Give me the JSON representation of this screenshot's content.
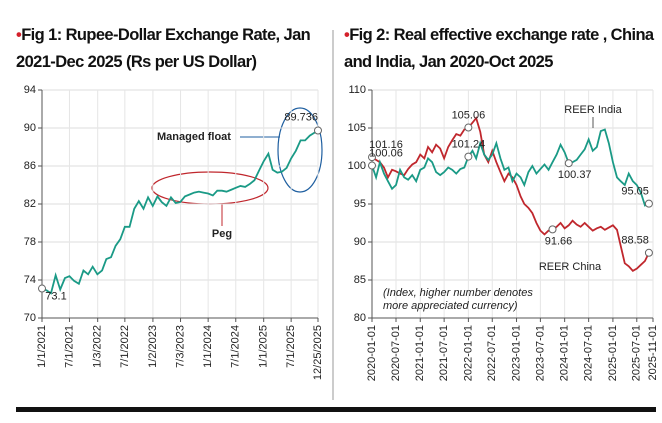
{
  "chart_data": [
    {
      "type": "line",
      "title": "Fig 1: Rupee-Dollar Exchange Rate, Jan 2021-Dec 2025 (Rs per US Dollar)",
      "x": [
        "2021-01-01",
        "2021-02-01",
        "2021-03-01",
        "2021-04-01",
        "2021-05-01",
        "2021-06-01",
        "2021-07-01",
        "2021-08-01",
        "2021-09-01",
        "2021-10-01",
        "2021-11-01",
        "2021-12-01",
        "2022-01-01",
        "2022-02-01",
        "2022-03-01",
        "2022-04-01",
        "2022-05-01",
        "2022-06-01",
        "2022-07-01",
        "2022-08-01",
        "2022-09-01",
        "2022-10-01",
        "2022-11-01",
        "2022-12-01",
        "2023-01-01",
        "2023-02-01",
        "2023-03-01",
        "2023-04-01",
        "2023-05-01",
        "2023-06-01",
        "2023-07-01",
        "2023-08-01",
        "2023-09-01",
        "2023-10-01",
        "2023-11-01",
        "2023-12-01",
        "2024-01-01",
        "2024-02-01",
        "2024-03-01",
        "2024-04-01",
        "2024-05-01",
        "2024-06-01",
        "2024-07-01",
        "2024-08-01",
        "2024-09-01",
        "2024-10-01",
        "2024-11-01",
        "2024-12-01",
        "2025-01-01",
        "2025-02-01",
        "2025-03-01",
        "2025-04-01",
        "2025-05-01",
        "2025-06-01",
        "2025-07-01",
        "2025-08-01",
        "2025-09-01",
        "2025-10-01",
        "2025-11-01",
        "2025-12-25"
      ],
      "series": [
        {
          "color": "#1a9a86",
          "labeled_points": [
            0,
            59
          ],
          "values": [
            73.1,
            72.9,
            72.6,
            74.5,
            73.0,
            74.2,
            74.4,
            73.9,
            73.6,
            75.0,
            74.6,
            75.4,
            74.6,
            75.0,
            76.2,
            76.4,
            77.6,
            78.3,
            79.6,
            79.6,
            81.5,
            82.3,
            81.5,
            82.7,
            81.8,
            82.8,
            82.2,
            81.8,
            82.7,
            82.1,
            82.2,
            82.8,
            83.0,
            83.2,
            83.3,
            83.2,
            83.1,
            82.9,
            83.4,
            83.4,
            83.3,
            83.5,
            83.7,
            83.9,
            83.8,
            84.1,
            84.5,
            85.5,
            86.5,
            87.3,
            85.6,
            85.3,
            85.4,
            85.8,
            86.8,
            87.6,
            88.7,
            88.7,
            89.2,
            89.736
          ]
        }
      ],
      "xlim": [
        "2021-01-01",
        "2025-12-25"
      ],
      "xticks": [
        "1/1/2021",
        "7/1/2021",
        {
          "value": "2022-01-03",
          "label": "1/3/2022"
        },
        "7/1/2022",
        {
          "value": "2023-01-02",
          "label": "1/2/2023"
        },
        {
          "value": "2023-07-03",
          "label": "7/3/2023"
        },
        "1/1/2024",
        "7/1/2024",
        "1/1/2025",
        "7/1/2025",
        "12/25/2025"
      ],
      "ylim": [
        70,
        94
      ],
      "yticks": [
        70,
        74,
        78,
        82,
        86,
        90,
        94
      ],
      "grid": true,
      "annotations": [
        "Managed float",
        "Peg"
      ]
    },
    {
      "type": "line",
      "title": "Fig 2: Real effective exchange rate , China and India, Jan 2020-Oct 2025",
      "x": [
        "2020-01",
        "2020-02",
        "2020-03",
        "2020-04",
        "2020-05",
        "2020-06",
        "2020-07",
        "2020-08",
        "2020-09",
        "2020-10",
        "2020-11",
        "2020-12",
        "2021-01",
        "2021-02",
        "2021-03",
        "2021-04",
        "2021-05",
        "2021-06",
        "2021-07",
        "2021-08",
        "2021-09",
        "2021-10",
        "2021-11",
        "2021-12",
        "2022-01",
        "2022-02",
        "2022-03",
        "2022-04",
        "2022-05",
        "2022-06",
        "2022-07",
        "2022-08",
        "2022-09",
        "2022-10",
        "2022-11",
        "2022-12",
        "2023-01",
        "2023-02",
        "2023-03",
        "2023-04",
        "2023-05",
        "2023-06",
        "2023-07",
        "2023-08",
        "2023-09",
        "2023-10",
        "2023-11",
        "2023-12",
        "2024-01",
        "2024-02",
        "2024-03",
        "2024-04",
        "2024-05",
        "2024-06",
        "2024-07",
        "2024-08",
        "2024-09",
        "2024-10",
        "2024-11",
        "2024-12",
        "2025-01",
        "2025-02",
        "2025-03",
        "2025-04",
        "2025-05",
        "2025-06",
        "2025-07",
        "2025-08",
        "2025-09",
        "2025-10"
      ],
      "series": [
        {
          "name": "REER China",
          "color": "#c0272d",
          "labeled_points": [
            0,
            24,
            45,
            69
          ],
          "values": [
            101.16,
            100.8,
            100.5,
            99.8,
            98.5,
            99.5,
            99.3,
            99.0,
            98.8,
            99.6,
            100.2,
            100.5,
            101.5,
            101.0,
            102.5,
            101.8,
            102.8,
            102.3,
            101.0,
            102.5,
            103.4,
            104.2,
            104.0,
            104.8,
            105.06,
            105.7,
            106.3,
            104.5,
            101.5,
            100.5,
            102.0,
            100.5,
            99.2,
            98.0,
            99.0,
            98.5,
            97.5,
            96.0,
            95.0,
            94.5,
            93.8,
            92.5,
            91.5,
            91.0,
            91.5,
            91.66,
            92.0,
            92.5,
            91.8,
            92.2,
            92.8,
            92.3,
            92.0,
            92.5,
            92.0,
            91.5,
            91.8,
            92.0,
            91.6,
            91.9,
            92.2,
            91.6,
            89.5,
            87.2,
            86.8,
            86.2,
            86.5,
            87.0,
            87.5,
            88.58
          ]
        },
        {
          "name": "REER India",
          "color": "#1a9a86",
          "labeled_points": [
            0,
            24,
            49,
            69
          ],
          "values": [
            100.06,
            98.5,
            100.5,
            99.0,
            98.0,
            97.0,
            97.5,
            99.5,
            98.5,
            98.2,
            98.8,
            98.0,
            99.5,
            99.8,
            101.0,
            100.5,
            99.2,
            98.8,
            99.2,
            99.8,
            99.5,
            99.0,
            99.6,
            99.8,
            101.24,
            102.0,
            101.0,
            103.0,
            101.5,
            100.8,
            101.5,
            103.0,
            101.0,
            99.5,
            99.8,
            98.0,
            99.0,
            98.5,
            97.5,
            99.2,
            100.0,
            99.0,
            99.6,
            100.2,
            99.5,
            100.5,
            101.5,
            102.8,
            101.8,
            100.37,
            100.5,
            100.8,
            101.5,
            102.2,
            103.5,
            102.0,
            102.5,
            104.6,
            104.8,
            103.0,
            100.5,
            98.5,
            98.0,
            97.5,
            99.0,
            98.0,
            97.5,
            96.5,
            94.8,
            95.05
          ]
        }
      ],
      "xlim": [
        "2020-01-01",
        "2025-11-01"
      ],
      "xticks": [
        "2020-01-01",
        "2020-07-01",
        "2021-01-01",
        "2021-07-01",
        "2022-01-01",
        "2022-07-01",
        "2023-01-01",
        "2023-07-01",
        "2024-01-01",
        "2024-07-01",
        "2025-01-01",
        "2025-07-01",
        "2025-11-01"
      ],
      "ylim": [
        80,
        110
      ],
      "yticks": [
        80,
        85,
        90,
        95,
        100,
        105,
        110
      ],
      "grid": true,
      "annotations": [
        "(Index, higher number denotes more appreciated currency)"
      ]
    }
  ]
}
